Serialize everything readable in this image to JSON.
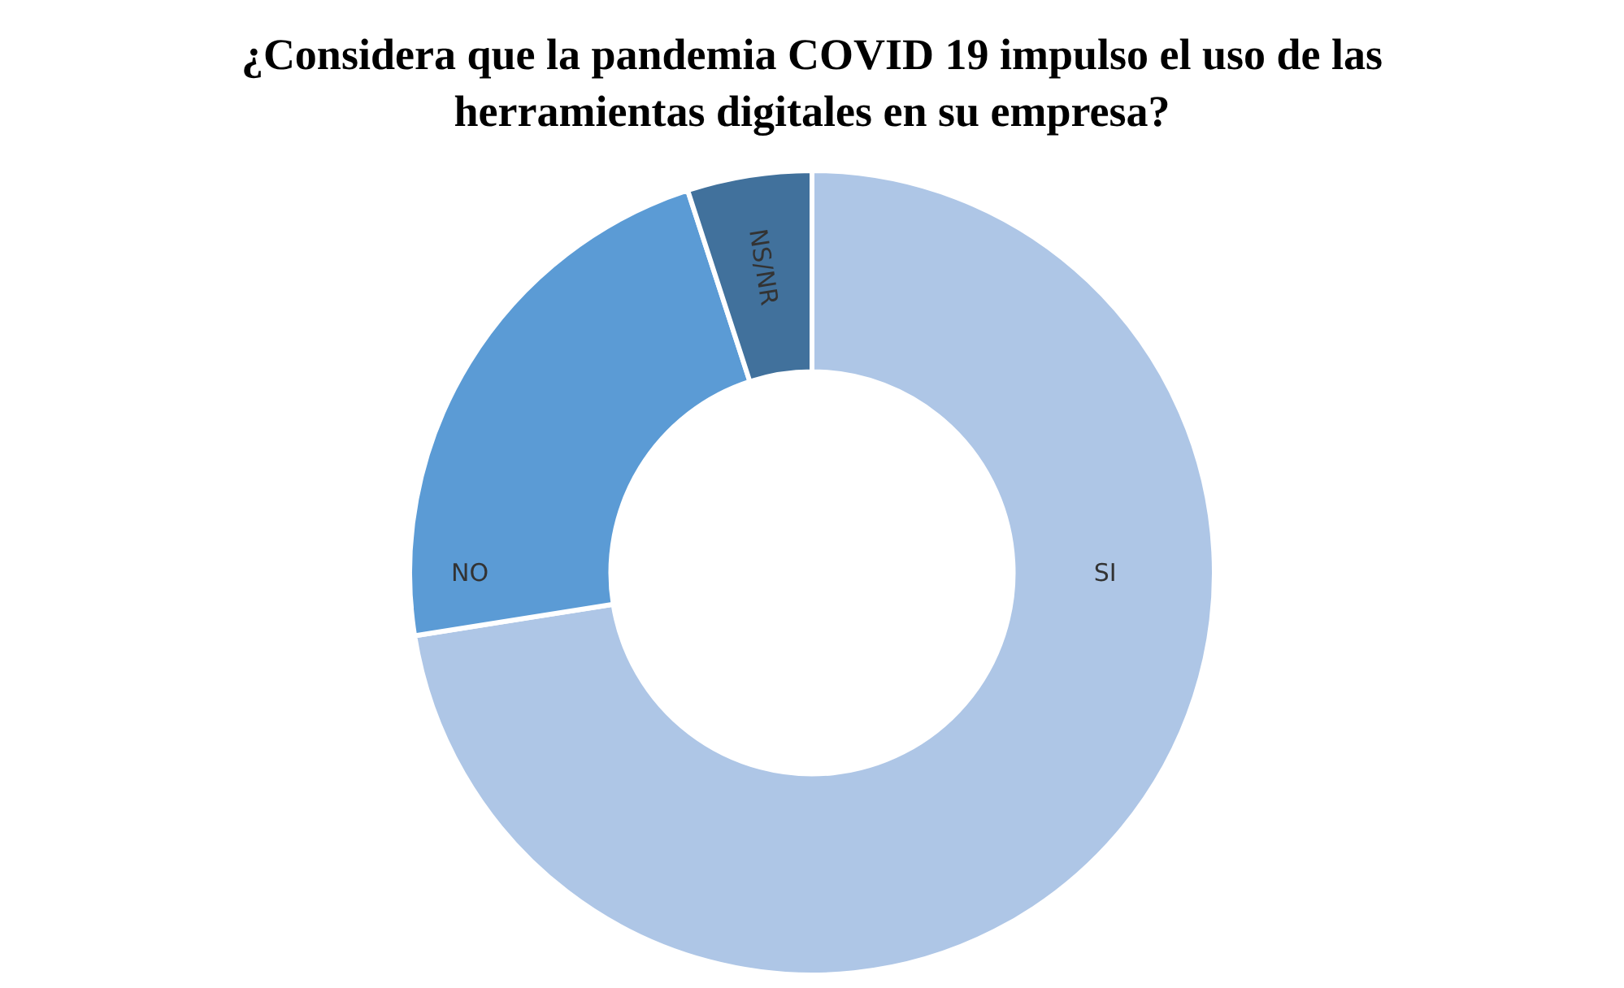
{
  "chart_data": {
    "type": "donut",
    "title": "¿Considera que la pandemia COVID 19 impulso el uso de las herramientas digitales en su empresa?",
    "categories": [
      "SI",
      "NO",
      "NS/NR"
    ],
    "values": [
      72.5,
      22.5,
      5
    ],
    "colors": [
      "#aec6e6",
      "#5b9bd5",
      "#41719c"
    ],
    "legend": false
  }
}
